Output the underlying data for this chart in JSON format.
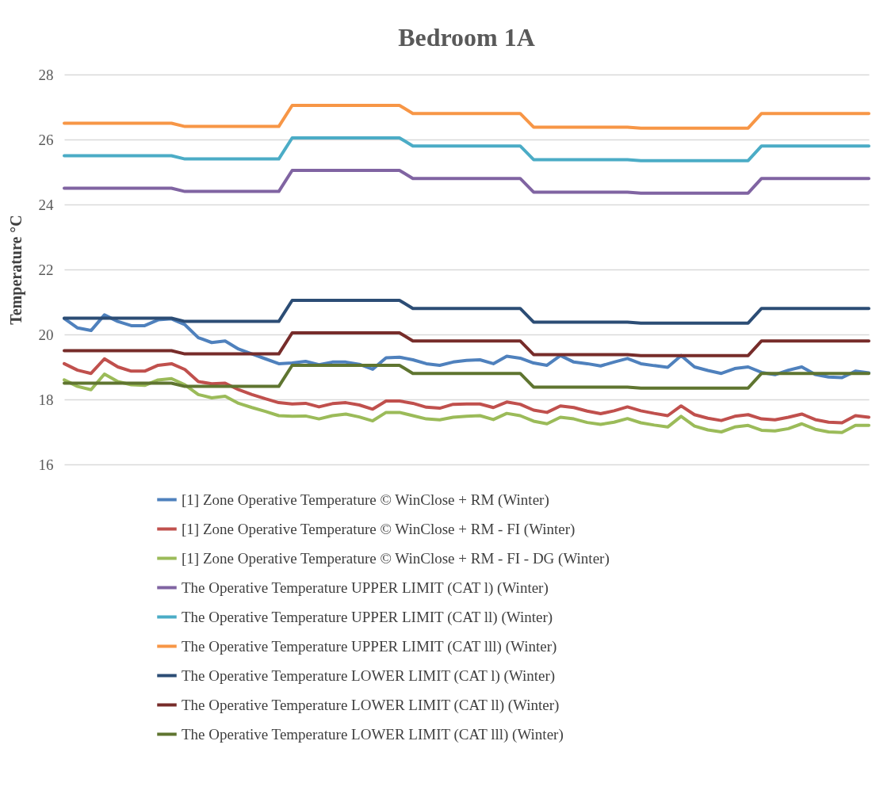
{
  "chart_data": {
    "type": "line",
    "title": "Bedroom 1A",
    "ylabel": "Temperature °C",
    "categories": [
      null,
      null,
      null,
      null,
      null,
      null,
      null,
      null,
      null,
      null,
      null,
      null,
      null,
      null,
      null,
      null,
      null,
      null,
      null,
      null,
      null,
      null,
      null,
      null,
      null,
      null,
      null,
      null,
      null,
      null,
      null,
      null,
      null,
      null,
      null,
      null,
      null,
      null,
      null,
      null,
      null,
      null,
      null,
      null,
      null,
      null,
      null,
      null,
      null,
      null,
      null,
      null,
      null,
      null,
      null,
      null,
      null,
      null,
      null,
      null,
      null
    ],
    "ylim": [
      16,
      28
    ],
    "yticks": [
      16,
      18,
      20,
      22,
      24,
      26,
      28
    ],
    "tick_labels": "y",
    "grid": "y",
    "legend": "bottom",
    "marker": "none",
    "line_style": "solid",
    "series": [
      {
        "name": "[1] Zone Operative Temperature © WinClose + RM (Winter)",
        "color": "#4f81bd",
        "values": [
          20.49,
          20.2,
          20.12,
          20.6,
          20.4,
          20.27,
          20.27,
          20.45,
          20.48,
          20.3,
          19.9,
          19.75,
          19.8,
          19.55,
          19.4,
          19.25,
          19.1,
          19.12,
          19.17,
          19.07,
          19.15,
          19.15,
          19.08,
          18.93,
          19.28,
          19.3,
          19.22,
          19.1,
          19.05,
          19.15,
          19.2,
          19.22,
          19.1,
          19.33,
          19.27,
          19.12,
          19.05,
          19.35,
          19.15,
          19.1,
          19.03,
          19.15,
          19.26,
          19.1,
          19.04,
          18.99,
          19.35,
          19.0,
          18.89,
          18.8,
          18.95,
          19.0,
          18.83,
          18.76,
          18.9,
          19.0,
          18.77,
          18.69,
          18.67,
          18.87,
          18.82
        ]
      },
      {
        "name": "[1] Zone Operative Temperature © WinClose + RM - FI (Winter)",
        "color": "#c0504d",
        "values": [
          19.1,
          18.9,
          18.8,
          19.25,
          19.0,
          18.87,
          18.87,
          19.05,
          19.1,
          18.92,
          18.55,
          18.48,
          18.5,
          18.3,
          18.15,
          18.02,
          17.9,
          17.86,
          17.88,
          17.77,
          17.87,
          17.9,
          17.83,
          17.7,
          17.95,
          17.95,
          17.88,
          17.76,
          17.73,
          17.85,
          17.86,
          17.86,
          17.75,
          17.92,
          17.85,
          17.67,
          17.6,
          17.8,
          17.75,
          17.64,
          17.56,
          17.65,
          17.77,
          17.65,
          17.57,
          17.5,
          17.8,
          17.53,
          17.42,
          17.35,
          17.48,
          17.53,
          17.4,
          17.37,
          17.45,
          17.55,
          17.38,
          17.3,
          17.28,
          17.5,
          17.45
        ]
      },
      {
        "name": "[1] Zone Operative Temperature © WinClose + RM - FI - DG (Winter)",
        "color": "#9bbb59",
        "values": [
          18.6,
          18.4,
          18.3,
          18.78,
          18.55,
          18.45,
          18.43,
          18.6,
          18.64,
          18.45,
          18.15,
          18.05,
          18.1,
          17.88,
          17.75,
          17.63,
          17.5,
          17.48,
          17.49,
          17.4,
          17.5,
          17.55,
          17.46,
          17.34,
          17.6,
          17.6,
          17.5,
          17.4,
          17.37,
          17.45,
          17.48,
          17.5,
          17.38,
          17.57,
          17.5,
          17.33,
          17.25,
          17.45,
          17.4,
          17.29,
          17.23,
          17.3,
          17.41,
          17.28,
          17.21,
          17.15,
          17.48,
          17.18,
          17.06,
          17.0,
          17.15,
          17.2,
          17.05,
          17.03,
          17.1,
          17.25,
          17.08,
          17.0,
          16.98,
          17.2,
          17.2
        ]
      },
      {
        "name": "The Operative Temperature UPPER LIMIT (CAT l)  (Winter)",
        "color": "#8064a2",
        "values": [
          24.5,
          24.5,
          24.5,
          24.5,
          24.5,
          24.5,
          24.5,
          24.5,
          24.5,
          24.4,
          24.4,
          24.4,
          24.4,
          24.4,
          24.4,
          24.4,
          24.4,
          25.05,
          25.05,
          25.05,
          25.05,
          25.05,
          25.05,
          25.05,
          25.05,
          25.05,
          24.8,
          24.8,
          24.8,
          24.8,
          24.8,
          24.8,
          24.8,
          24.8,
          24.8,
          24.38,
          24.38,
          24.38,
          24.38,
          24.38,
          24.38,
          24.38,
          24.38,
          24.35,
          24.35,
          24.35,
          24.35,
          24.35,
          24.35,
          24.35,
          24.35,
          24.35,
          24.8,
          24.8,
          24.8,
          24.8,
          24.8,
          24.8,
          24.8,
          24.8,
          24.8
        ]
      },
      {
        "name": "The Operative Temperature UPPER LIMIT (CAT ll) (Winter)",
        "color": "#4bacc6",
        "values": [
          25.5,
          25.5,
          25.5,
          25.5,
          25.5,
          25.5,
          25.5,
          25.5,
          25.5,
          25.4,
          25.4,
          25.4,
          25.4,
          25.4,
          25.4,
          25.4,
          25.4,
          26.05,
          26.05,
          26.05,
          26.05,
          26.05,
          26.05,
          26.05,
          26.05,
          26.05,
          25.8,
          25.8,
          25.8,
          25.8,
          25.8,
          25.8,
          25.8,
          25.8,
          25.8,
          25.38,
          25.38,
          25.38,
          25.38,
          25.38,
          25.38,
          25.38,
          25.38,
          25.35,
          25.35,
          25.35,
          25.35,
          25.35,
          25.35,
          25.35,
          25.35,
          25.35,
          25.8,
          25.8,
          25.8,
          25.8,
          25.8,
          25.8,
          25.8,
          25.8,
          25.8
        ]
      },
      {
        "name": "The Operative Temperature UPPER LIMIT (CAT lll) (Winter)",
        "color": "#f79646",
        "values": [
          26.5,
          26.5,
          26.5,
          26.5,
          26.5,
          26.5,
          26.5,
          26.5,
          26.5,
          26.4,
          26.4,
          26.4,
          26.4,
          26.4,
          26.4,
          26.4,
          26.4,
          27.05,
          27.05,
          27.05,
          27.05,
          27.05,
          27.05,
          27.05,
          27.05,
          27.05,
          26.8,
          26.8,
          26.8,
          26.8,
          26.8,
          26.8,
          26.8,
          26.8,
          26.8,
          26.38,
          26.38,
          26.38,
          26.38,
          26.38,
          26.38,
          26.38,
          26.38,
          26.35,
          26.35,
          26.35,
          26.35,
          26.35,
          26.35,
          26.35,
          26.35,
          26.35,
          26.8,
          26.8,
          26.8,
          26.8,
          26.8,
          26.8,
          26.8,
          26.8,
          26.8
        ]
      },
      {
        "name": "The Operative Temperature LOWER LIMIT (CAT l) (Winter)",
        "color": "#2c4d75",
        "values": [
          20.5,
          20.5,
          20.5,
          20.5,
          20.5,
          20.5,
          20.5,
          20.5,
          20.5,
          20.4,
          20.4,
          20.4,
          20.4,
          20.4,
          20.4,
          20.4,
          20.4,
          21.05,
          21.05,
          21.05,
          21.05,
          21.05,
          21.05,
          21.05,
          21.05,
          21.05,
          20.8,
          20.8,
          20.8,
          20.8,
          20.8,
          20.8,
          20.8,
          20.8,
          20.8,
          20.38,
          20.38,
          20.38,
          20.38,
          20.38,
          20.38,
          20.38,
          20.38,
          20.35,
          20.35,
          20.35,
          20.35,
          20.35,
          20.35,
          20.35,
          20.35,
          20.35,
          20.8,
          20.8,
          20.8,
          20.8,
          20.8,
          20.8,
          20.8,
          20.8,
          20.8
        ]
      },
      {
        "name": "The Operative Temperature LOWER LIMIT (CAT ll) (Winter)",
        "color": "#772c2a",
        "values": [
          19.5,
          19.5,
          19.5,
          19.5,
          19.5,
          19.5,
          19.5,
          19.5,
          19.5,
          19.4,
          19.4,
          19.4,
          19.4,
          19.4,
          19.4,
          19.4,
          19.4,
          20.05,
          20.05,
          20.05,
          20.05,
          20.05,
          20.05,
          20.05,
          20.05,
          20.05,
          19.8,
          19.8,
          19.8,
          19.8,
          19.8,
          19.8,
          19.8,
          19.8,
          19.8,
          19.38,
          19.38,
          19.38,
          19.38,
          19.38,
          19.38,
          19.38,
          19.38,
          19.35,
          19.35,
          19.35,
          19.35,
          19.35,
          19.35,
          19.35,
          19.35,
          19.35,
          19.8,
          19.8,
          19.8,
          19.8,
          19.8,
          19.8,
          19.8,
          19.8,
          19.8
        ]
      },
      {
        "name": "The Operative Temperature LOWER LIMIT (CAT lll) (Winter)",
        "color": "#5f7530",
        "values": [
          18.5,
          18.5,
          18.5,
          18.5,
          18.5,
          18.5,
          18.5,
          18.5,
          18.5,
          18.4,
          18.4,
          18.4,
          18.4,
          18.4,
          18.4,
          18.4,
          18.4,
          19.05,
          19.05,
          19.05,
          19.05,
          19.05,
          19.05,
          19.05,
          19.05,
          19.05,
          18.8,
          18.8,
          18.8,
          18.8,
          18.8,
          18.8,
          18.8,
          18.8,
          18.8,
          18.38,
          18.38,
          18.38,
          18.38,
          18.38,
          18.38,
          18.38,
          18.38,
          18.35,
          18.35,
          18.35,
          18.35,
          18.35,
          18.35,
          18.35,
          18.35,
          18.35,
          18.8,
          18.8,
          18.8,
          18.8,
          18.8,
          18.8,
          18.8,
          18.8,
          18.8
        ]
      }
    ]
  }
}
